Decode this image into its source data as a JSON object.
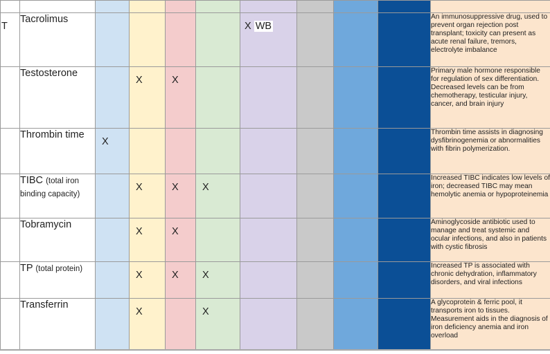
{
  "lead_text": "T",
  "mark_symbol": "X",
  "wb_label": "WB",
  "column_colors": [
    "#cfe2f3",
    "#fff2cc",
    "#f4cccc",
    "#d9ead3",
    "#d9d2e9",
    "#c9c9c9",
    "#6fa8dc",
    "#0b4f96",
    "#fce5cd"
  ],
  "rows": [
    {
      "name": "Tacrolimus",
      "sub": "",
      "marks": [
        "",
        "",
        "",
        "",
        "X",
        "",
        "",
        ""
      ],
      "description": "An immunosuppressive drug, used to prevent organ rejection post transplant; toxicity can present as acute renal failure, tremors, electrolyte imbalance"
    },
    {
      "name": "Testosterone",
      "sub": "",
      "marks": [
        "",
        "X",
        "X",
        "",
        "",
        "",
        "",
        ""
      ],
      "description": "Primary male hormone responsible for regulation of sex differentiation. Decreased levels can be from chemotherapy, testicular injury, cancer, and brain injury"
    },
    {
      "name": "Thrombin time",
      "sub": "",
      "marks": [
        "X",
        "",
        "",
        "",
        "",
        "",
        "",
        ""
      ],
      "description": "Thrombin time assists in diagnosing dysfibrinogenemia or abnormalities with fibrin polymerization."
    },
    {
      "name": "TIBC",
      "sub": "(total iron binding capacity)",
      "marks": [
        "",
        "X",
        "X",
        "X",
        "",
        "",
        "",
        ""
      ],
      "description": "Increased TIBC indicates low levels of iron; decreased TIBC may mean hemolytic anemia or hypoproteinemia"
    },
    {
      "name": "Tobramycin",
      "sub": "",
      "marks": [
        "",
        "X",
        "X",
        "",
        "",
        "",
        "",
        ""
      ],
      "description": "Aminoglycoside antibiotic used to manage and treat systemic and ocular infections, and also in patients with cystic fibrosis"
    },
    {
      "name": "TP",
      "sub": "(total protein)",
      "marks": [
        "",
        "X",
        "X",
        "X",
        "",
        "",
        "",
        ""
      ],
      "description": "Increased TP is associated with chronic dehydration, inflammatory disorders, and viral infections"
    },
    {
      "name": "Transferrin",
      "sub": "",
      "marks": [
        "",
        "X",
        "",
        "X",
        "",
        "",
        "",
        ""
      ],
      "description": "A glycoprotein & ferric pool, it transports iron to tissues. Measurement aids in the diagnosis of iron deficiency anemia and iron overload"
    }
  ]
}
